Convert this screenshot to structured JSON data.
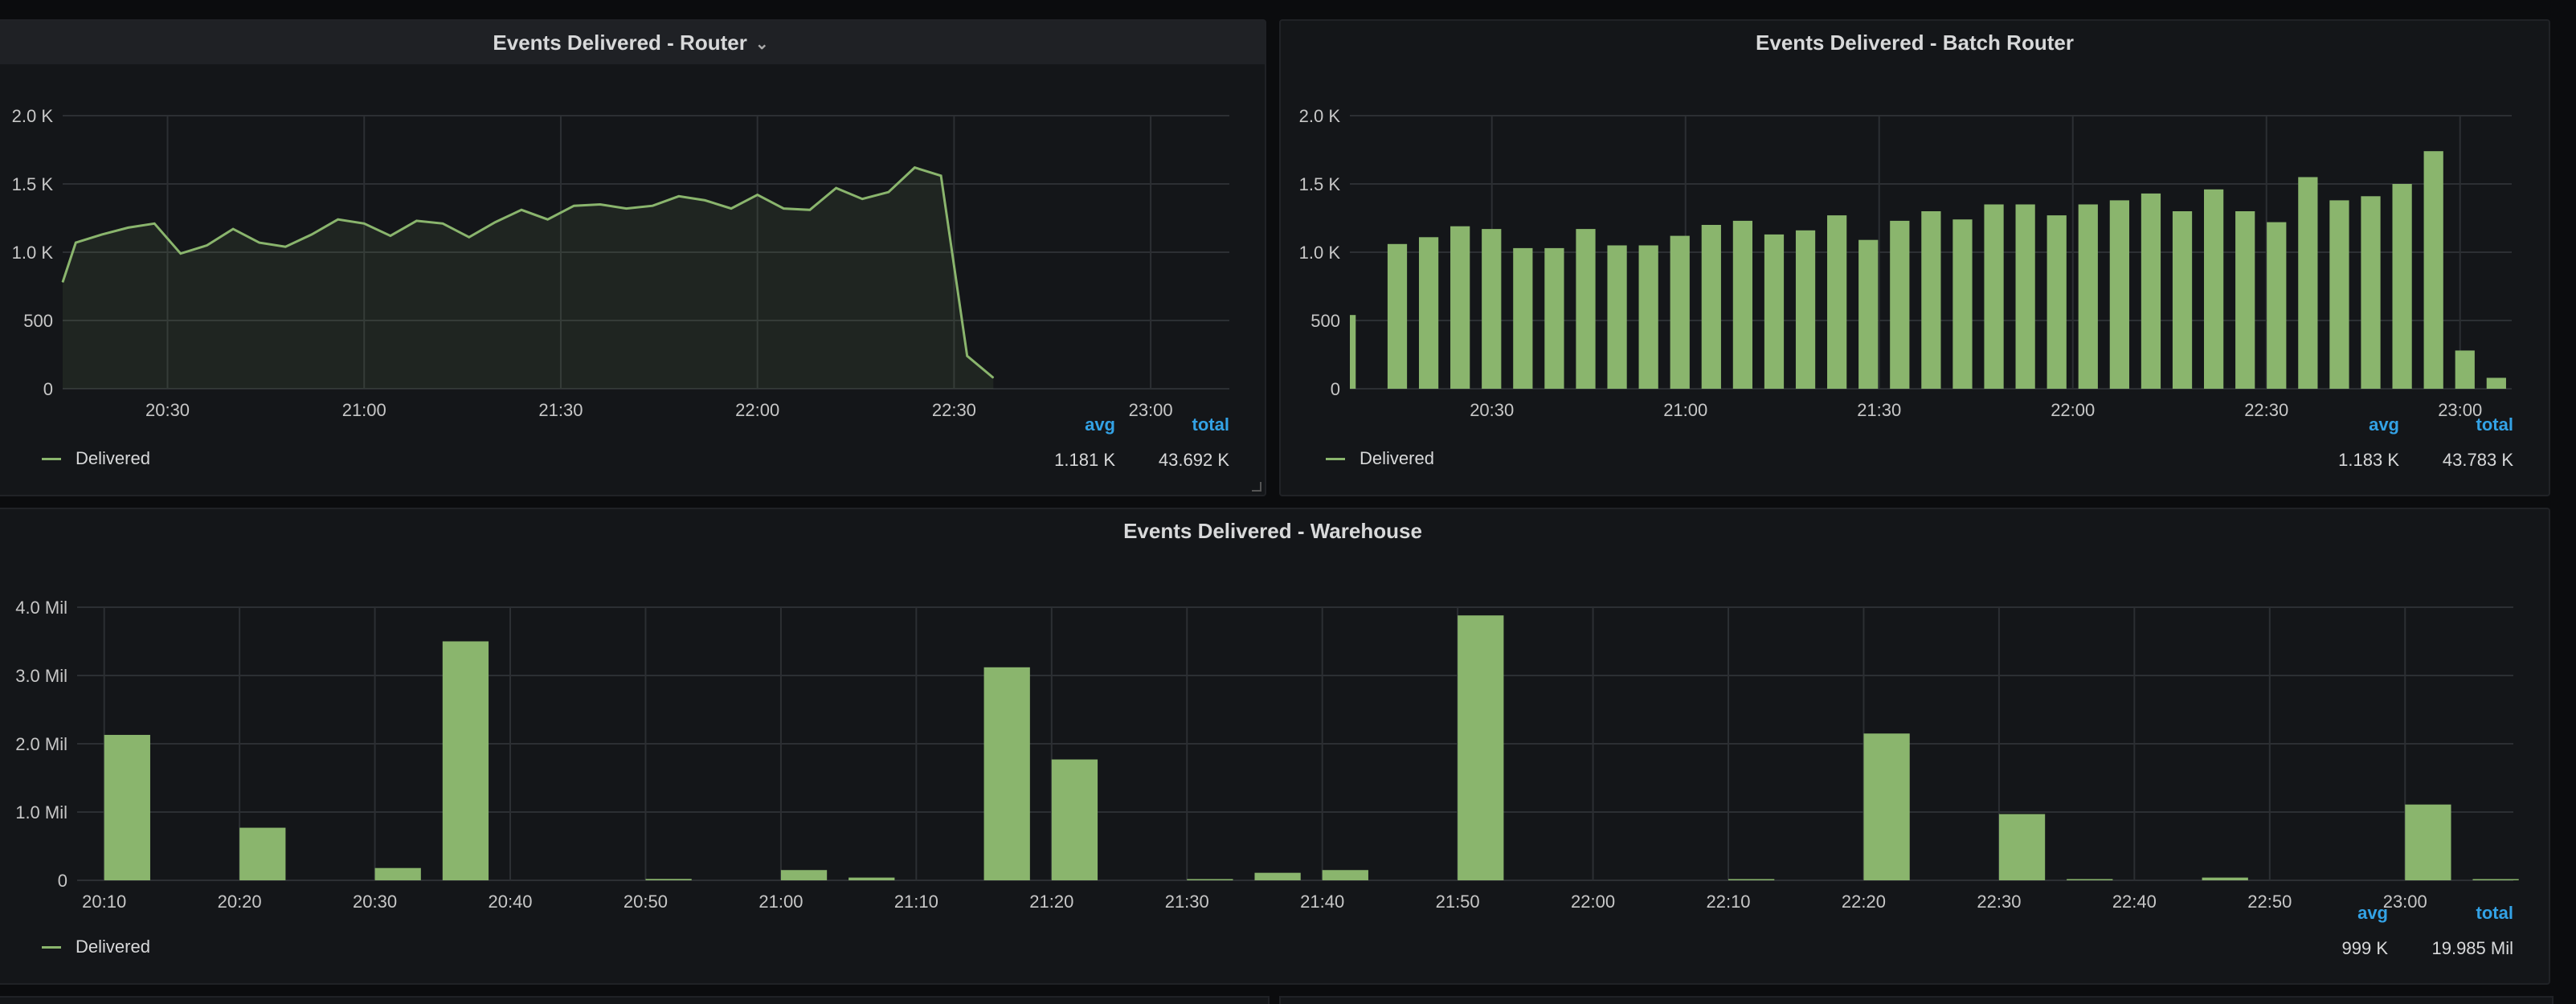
{
  "panels": {
    "router": {
      "title": "Events Delivered - Router",
      "legend": "Delivered",
      "avg_label": "avg",
      "total_label": "total",
      "avg": "1.181 K",
      "total": "43.692 K"
    },
    "batch": {
      "title": "Events Delivered - Batch Router",
      "legend": "Delivered",
      "avg_label": "avg",
      "total_label": "total",
      "avg": "1.183 K",
      "total": "43.783 K"
    },
    "warehouse": {
      "title": "Events Delivered - Warehouse",
      "legend": "Delivered",
      "avg_label": "avg",
      "total_label": "total",
      "avg": "999 K",
      "total": "19.985 Mil"
    }
  },
  "colors": {
    "series": "#8ab56d",
    "accent": "#33a2e5",
    "grid": "#2c2f33"
  },
  "chart_data": [
    {
      "type": "area",
      "title": "Events Delivered - Router",
      "ylim": [
        0,
        2000
      ],
      "yticks": [
        0,
        500,
        1000,
        1500,
        2000
      ],
      "ytick_labels": [
        "0",
        "500",
        "1.0 K",
        "1.5 K",
        "2.0 K"
      ],
      "xlim": [
        "20:14",
        "23:12"
      ],
      "xticks": [
        "20:30",
        "21:00",
        "21:30",
        "22:00",
        "22:30",
        "23:00"
      ],
      "series": [
        {
          "name": "Delivered",
          "x": [
            "20:14",
            "20:16",
            "20:20",
            "20:24",
            "20:28",
            "20:32",
            "20:36",
            "20:40",
            "20:44",
            "20:48",
            "20:52",
            "20:56",
            "21:00",
            "21:04",
            "21:08",
            "21:12",
            "21:16",
            "21:20",
            "21:24",
            "21:28",
            "21:32",
            "21:36",
            "21:40",
            "21:44",
            "21:48",
            "21:52",
            "21:56",
            "22:00",
            "22:04",
            "22:08",
            "22:12",
            "22:16",
            "22:20",
            "22:24",
            "22:28",
            "22:32",
            "22:36",
            "22:40",
            "22:44",
            "22:48",
            "22:52",
            "22:56",
            "23:00",
            "23:05"
          ],
          "values": [
            780,
            1070,
            1130,
            1180,
            1210,
            990,
            1050,
            1170,
            1070,
            1040,
            1130,
            1240,
            1210,
            1120,
            1230,
            1210,
            1110,
            1220,
            1310,
            1240,
            1340,
            1350,
            1320,
            1340,
            1410,
            1380,
            1320,
            1420,
            1320,
            1310,
            1470,
            1390,
            1440,
            1620,
            1560,
            240,
            80,
            null,
            null,
            null,
            null,
            null,
            null,
            null
          ]
        }
      ],
      "legend_position": "bottom-left",
      "grid": true
    },
    {
      "type": "bar",
      "title": "Events Delivered - Batch Router",
      "ylim": [
        0,
        2000
      ],
      "yticks": [
        0,
        500,
        1000,
        1500,
        2000
      ],
      "ytick_labels": [
        "0",
        "500",
        "1.0 K",
        "1.5 K",
        "2.0 K"
      ],
      "xlim": [
        "20:08",
        "23:08"
      ],
      "xticks": [
        "20:30",
        "21:00",
        "21:30",
        "22:00",
        "22:30",
        "23:00"
      ],
      "series": [
        {
          "name": "Delivered",
          "values": [
            540,
            1060,
            1110,
            1190,
            1170,
            1030,
            1030,
            1170,
            1050,
            1050,
            1120,
            1200,
            1230,
            1130,
            1160,
            1270,
            1090,
            1230,
            1300,
            1240,
            1350,
            1350,
            1270,
            1350,
            1380,
            1430,
            1300,
            1460,
            1300,
            1220,
            1550,
            1380,
            1410,
            1500,
            1740,
            280,
            80
          ]
        }
      ],
      "legend_position": "bottom-left",
      "grid": true
    },
    {
      "type": "bar",
      "title": "Events Delivered - Warehouse",
      "ylim": [
        0,
        4000000
      ],
      "yticks": [
        0,
        1000000,
        2000000,
        3000000,
        4000000
      ],
      "ytick_labels": [
        "0",
        "1.0 Mil",
        "2.0 Mil",
        "3.0 Mil",
        "4.0 Mil"
      ],
      "xlim": [
        "20:08",
        "23:08"
      ],
      "xticks": [
        "20:10",
        "20:20",
        "20:30",
        "20:40",
        "20:50",
        "21:00",
        "21:10",
        "21:20",
        "21:30",
        "21:40",
        "21:50",
        "22:00",
        "22:10",
        "22:20",
        "22:30",
        "22:40",
        "22:50",
        "23:00"
      ],
      "series": [
        {
          "name": "Delivered",
          "x": [
            "20:10",
            "20:15",
            "20:20",
            "20:25",
            "20:30",
            "20:35",
            "20:40",
            "20:45",
            "20:50",
            "20:55",
            "21:00",
            "21:05",
            "21:10",
            "21:15",
            "21:20",
            "21:25",
            "21:30",
            "21:35",
            "21:40",
            "21:45",
            "21:50",
            "21:55",
            "22:00",
            "22:05",
            "22:10",
            "22:15",
            "22:20",
            "22:25",
            "22:30",
            "22:35",
            "22:40",
            "22:45",
            "22:50",
            "22:55",
            "23:00",
            "23:05"
          ],
          "values": [
            2130000,
            0,
            770000,
            0,
            180000,
            3500000,
            0,
            0,
            20000,
            0,
            150000,
            40000,
            0,
            3120000,
            1770000,
            0,
            10000,
            110000,
            150000,
            0,
            3880000,
            0,
            0,
            0,
            10000,
            0,
            2150000,
            0,
            970000,
            10000,
            0,
            40000,
            0,
            0,
            1110000,
            10000
          ]
        }
      ],
      "legend_position": "bottom-left",
      "grid": true
    }
  ]
}
